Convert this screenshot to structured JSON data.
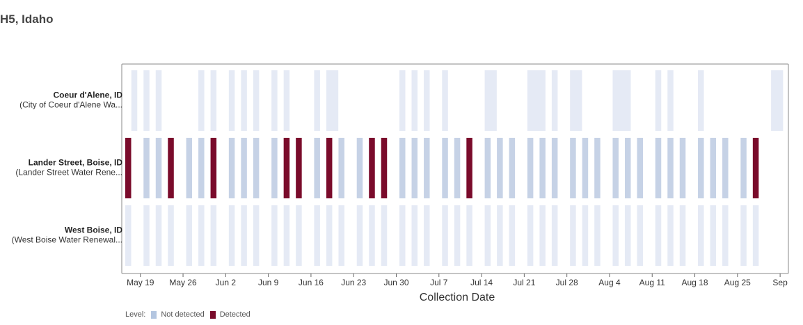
{
  "title": "H5, Idaho",
  "colors": {
    "not_detected": "#c6d2e6",
    "not_detected_light": "#e5eaf5",
    "detected": "#7a0b2b",
    "frame": "#888888"
  },
  "legend": {
    "label": "Level:",
    "items": [
      {
        "label": "Not detected",
        "color": "#b4c6e0"
      },
      {
        "label": "Detected",
        "color": "#7a0b2b"
      }
    ]
  },
  "chart_data": {
    "type": "heatmap",
    "xlabel": "Collection Date",
    "x_ticks": [
      "May 19",
      "May 26",
      "Jun 2",
      "Jun 9",
      "Jun 16",
      "Jun 23",
      "Jun 30",
      "Jul 7",
      "Jul 14",
      "Jul 21",
      "Jul 28",
      "Aug 4",
      "Aug 11",
      "Aug 18",
      "Aug 25",
      "Sep"
    ],
    "x_tick_days": [
      0,
      7,
      14,
      21,
      28,
      35,
      42,
      49,
      56,
      63,
      70,
      77,
      84,
      91,
      98,
      105
    ],
    "x_range_days": [
      -2,
      106.5
    ],
    "rows": [
      {
        "name": "Coeur d'Alene, ID",
        "sub": "(City of Coeur d'Alene Wa...",
        "samples": [
          {
            "day": -1,
            "w": 1,
            "level": "Not detected"
          },
          {
            "day": 1,
            "w": 1,
            "level": "Not detected"
          },
          {
            "day": 3,
            "w": 1,
            "level": "Not detected"
          },
          {
            "day": 10,
            "w": 1,
            "level": "Not detected"
          },
          {
            "day": 12,
            "w": 1,
            "level": "Not detected"
          },
          {
            "day": 15,
            "w": 1,
            "level": "Not detected"
          },
          {
            "day": 17,
            "w": 1,
            "level": "Not detected"
          },
          {
            "day": 19,
            "w": 1,
            "level": "Not detected"
          },
          {
            "day": 22,
            "w": 1,
            "level": "Not detected"
          },
          {
            "day": 24,
            "w": 1,
            "level": "Not detected"
          },
          {
            "day": 29,
            "w": 1,
            "level": "Not detected"
          },
          {
            "day": 31,
            "w": 2,
            "level": "Not detected"
          },
          {
            "day": 43,
            "w": 1,
            "level": "Not detected"
          },
          {
            "day": 45,
            "w": 1,
            "level": "Not detected"
          },
          {
            "day": 47,
            "w": 1,
            "level": "Not detected"
          },
          {
            "day": 50,
            "w": 1,
            "level": "Not detected"
          },
          {
            "day": 57,
            "w": 2,
            "level": "Not detected"
          },
          {
            "day": 64,
            "w": 3,
            "level": "Not detected"
          },
          {
            "day": 68,
            "w": 1,
            "level": "Not detected"
          },
          {
            "day": 71,
            "w": 2,
            "level": "Not detected"
          },
          {
            "day": 78,
            "w": 3,
            "level": "Not detected"
          },
          {
            "day": 85,
            "w": 1,
            "level": "Not detected"
          },
          {
            "day": 87,
            "w": 1,
            "level": "Not detected"
          },
          {
            "day": 92,
            "w": 1,
            "level": "Not detected"
          },
          {
            "day": 104,
            "w": 2,
            "level": "Not detected"
          }
        ]
      },
      {
        "name": "Lander Street, Boise, ID",
        "sub": "(Lander Street Water Rene...",
        "samples": [
          {
            "day": -2,
            "w": 1,
            "level": "Detected"
          },
          {
            "day": 1,
            "w": 1,
            "level": "Not detected"
          },
          {
            "day": 3,
            "w": 1,
            "level": "Not detected"
          },
          {
            "day": 5,
            "w": 1,
            "level": "Detected"
          },
          {
            "day": 8,
            "w": 1,
            "level": "Not detected"
          },
          {
            "day": 10,
            "w": 1,
            "level": "Not detected"
          },
          {
            "day": 12,
            "w": 1,
            "level": "Detected"
          },
          {
            "day": 15,
            "w": 1,
            "level": "Not detected"
          },
          {
            "day": 17,
            "w": 1,
            "level": "Not detected"
          },
          {
            "day": 19,
            "w": 1,
            "level": "Not detected"
          },
          {
            "day": 22,
            "w": 1,
            "level": "Not detected"
          },
          {
            "day": 24,
            "w": 1,
            "level": "Detected"
          },
          {
            "day": 26,
            "w": 1,
            "level": "Detected"
          },
          {
            "day": 29,
            "w": 1,
            "level": "Not detected"
          },
          {
            "day": 31,
            "w": 1,
            "level": "Detected"
          },
          {
            "day": 33,
            "w": 1,
            "level": "Not detected"
          },
          {
            "day": 36,
            "w": 1,
            "level": "Not detected"
          },
          {
            "day": 38,
            "w": 1,
            "level": "Detected"
          },
          {
            "day": 40,
            "w": 1,
            "level": "Detected"
          },
          {
            "day": 43,
            "w": 1,
            "level": "Not detected"
          },
          {
            "day": 45,
            "w": 1,
            "level": "Not detected"
          },
          {
            "day": 47,
            "w": 1,
            "level": "Not detected"
          },
          {
            "day": 50,
            "w": 1,
            "level": "Not detected"
          },
          {
            "day": 52,
            "w": 1,
            "level": "Not detected"
          },
          {
            "day": 54,
            "w": 1,
            "level": "Detected"
          },
          {
            "day": 57,
            "w": 1,
            "level": "Not detected"
          },
          {
            "day": 59,
            "w": 1,
            "level": "Not detected"
          },
          {
            "day": 61,
            "w": 1,
            "level": "Not detected"
          },
          {
            "day": 64,
            "w": 1,
            "level": "Not detected"
          },
          {
            "day": 66,
            "w": 1,
            "level": "Not detected"
          },
          {
            "day": 68,
            "w": 1,
            "level": "Not detected"
          },
          {
            "day": 71,
            "w": 1,
            "level": "Not detected"
          },
          {
            "day": 73,
            "w": 1,
            "level": "Not detected"
          },
          {
            "day": 75,
            "w": 1,
            "level": "Not detected"
          },
          {
            "day": 78,
            "w": 1,
            "level": "Not detected"
          },
          {
            "day": 80,
            "w": 1,
            "level": "Not detected"
          },
          {
            "day": 82,
            "w": 1,
            "level": "Not detected"
          },
          {
            "day": 85,
            "w": 1,
            "level": "Not detected"
          },
          {
            "day": 87,
            "w": 1,
            "level": "Not detected"
          },
          {
            "day": 89,
            "w": 1,
            "level": "Not detected"
          },
          {
            "day": 92,
            "w": 1,
            "level": "Not detected"
          },
          {
            "day": 94,
            "w": 1,
            "level": "Not detected"
          },
          {
            "day": 96,
            "w": 1,
            "level": "Not detected"
          },
          {
            "day": 99,
            "w": 1,
            "level": "Not detected"
          },
          {
            "day": 101,
            "w": 1,
            "level": "Detected"
          }
        ]
      },
      {
        "name": "West Boise, ID",
        "sub": "(West Boise Water Renewal...",
        "samples": [
          {
            "day": -2,
            "w": 1,
            "level": "Not detected"
          },
          {
            "day": 1,
            "w": 1,
            "level": "Not detected"
          },
          {
            "day": 3,
            "w": 1,
            "level": "Not detected"
          },
          {
            "day": 5,
            "w": 1,
            "level": "Not detected"
          },
          {
            "day": 8,
            "w": 1,
            "level": "Not detected"
          },
          {
            "day": 10,
            "w": 1,
            "level": "Not detected"
          },
          {
            "day": 12,
            "w": 1,
            "level": "Not detected"
          },
          {
            "day": 15,
            "w": 1,
            "level": "Not detected"
          },
          {
            "day": 17,
            "w": 1,
            "level": "Not detected"
          },
          {
            "day": 19,
            "w": 1,
            "level": "Not detected"
          },
          {
            "day": 22,
            "w": 1,
            "level": "Not detected"
          },
          {
            "day": 24,
            "w": 1,
            "level": "Not detected"
          },
          {
            "day": 26,
            "w": 1,
            "level": "Not detected"
          },
          {
            "day": 29,
            "w": 1,
            "level": "Not detected"
          },
          {
            "day": 31,
            "w": 1,
            "level": "Not detected"
          },
          {
            "day": 33,
            "w": 1,
            "level": "Not detected"
          },
          {
            "day": 36,
            "w": 1,
            "level": "Not detected"
          },
          {
            "day": 38,
            "w": 1,
            "level": "Not detected"
          },
          {
            "day": 40,
            "w": 1,
            "level": "Not detected"
          },
          {
            "day": 43,
            "w": 1,
            "level": "Not detected"
          },
          {
            "day": 45,
            "w": 1,
            "level": "Not detected"
          },
          {
            "day": 47,
            "w": 1,
            "level": "Not detected"
          },
          {
            "day": 50,
            "w": 1,
            "level": "Not detected"
          },
          {
            "day": 52,
            "w": 1,
            "level": "Not detected"
          },
          {
            "day": 54,
            "w": 1,
            "level": "Not detected"
          },
          {
            "day": 57,
            "w": 1,
            "level": "Not detected"
          },
          {
            "day": 59,
            "w": 1,
            "level": "Not detected"
          },
          {
            "day": 61,
            "w": 1,
            "level": "Not detected"
          },
          {
            "day": 64,
            "w": 1,
            "level": "Not detected"
          },
          {
            "day": 66,
            "w": 1,
            "level": "Not detected"
          },
          {
            "day": 68,
            "w": 1,
            "level": "Not detected"
          },
          {
            "day": 71,
            "w": 1,
            "level": "Not detected"
          },
          {
            "day": 73,
            "w": 1,
            "level": "Not detected"
          },
          {
            "day": 75,
            "w": 1,
            "level": "Not detected"
          },
          {
            "day": 78,
            "w": 1,
            "level": "Not detected"
          },
          {
            "day": 80,
            "w": 1,
            "level": "Not detected"
          },
          {
            "day": 82,
            "w": 1,
            "level": "Not detected"
          },
          {
            "day": 85,
            "w": 1,
            "level": "Not detected"
          },
          {
            "day": 87,
            "w": 1,
            "level": "Not detected"
          },
          {
            "day": 89,
            "w": 1,
            "level": "Not detected"
          },
          {
            "day": 92,
            "w": 1,
            "level": "Not detected"
          },
          {
            "day": 94,
            "w": 1,
            "level": "Not detected"
          },
          {
            "day": 96,
            "w": 1,
            "level": "Not detected"
          },
          {
            "day": 99,
            "w": 1,
            "level": "Not detected"
          },
          {
            "day": 101,
            "w": 1,
            "level": "Not detected"
          }
        ]
      }
    ]
  }
}
